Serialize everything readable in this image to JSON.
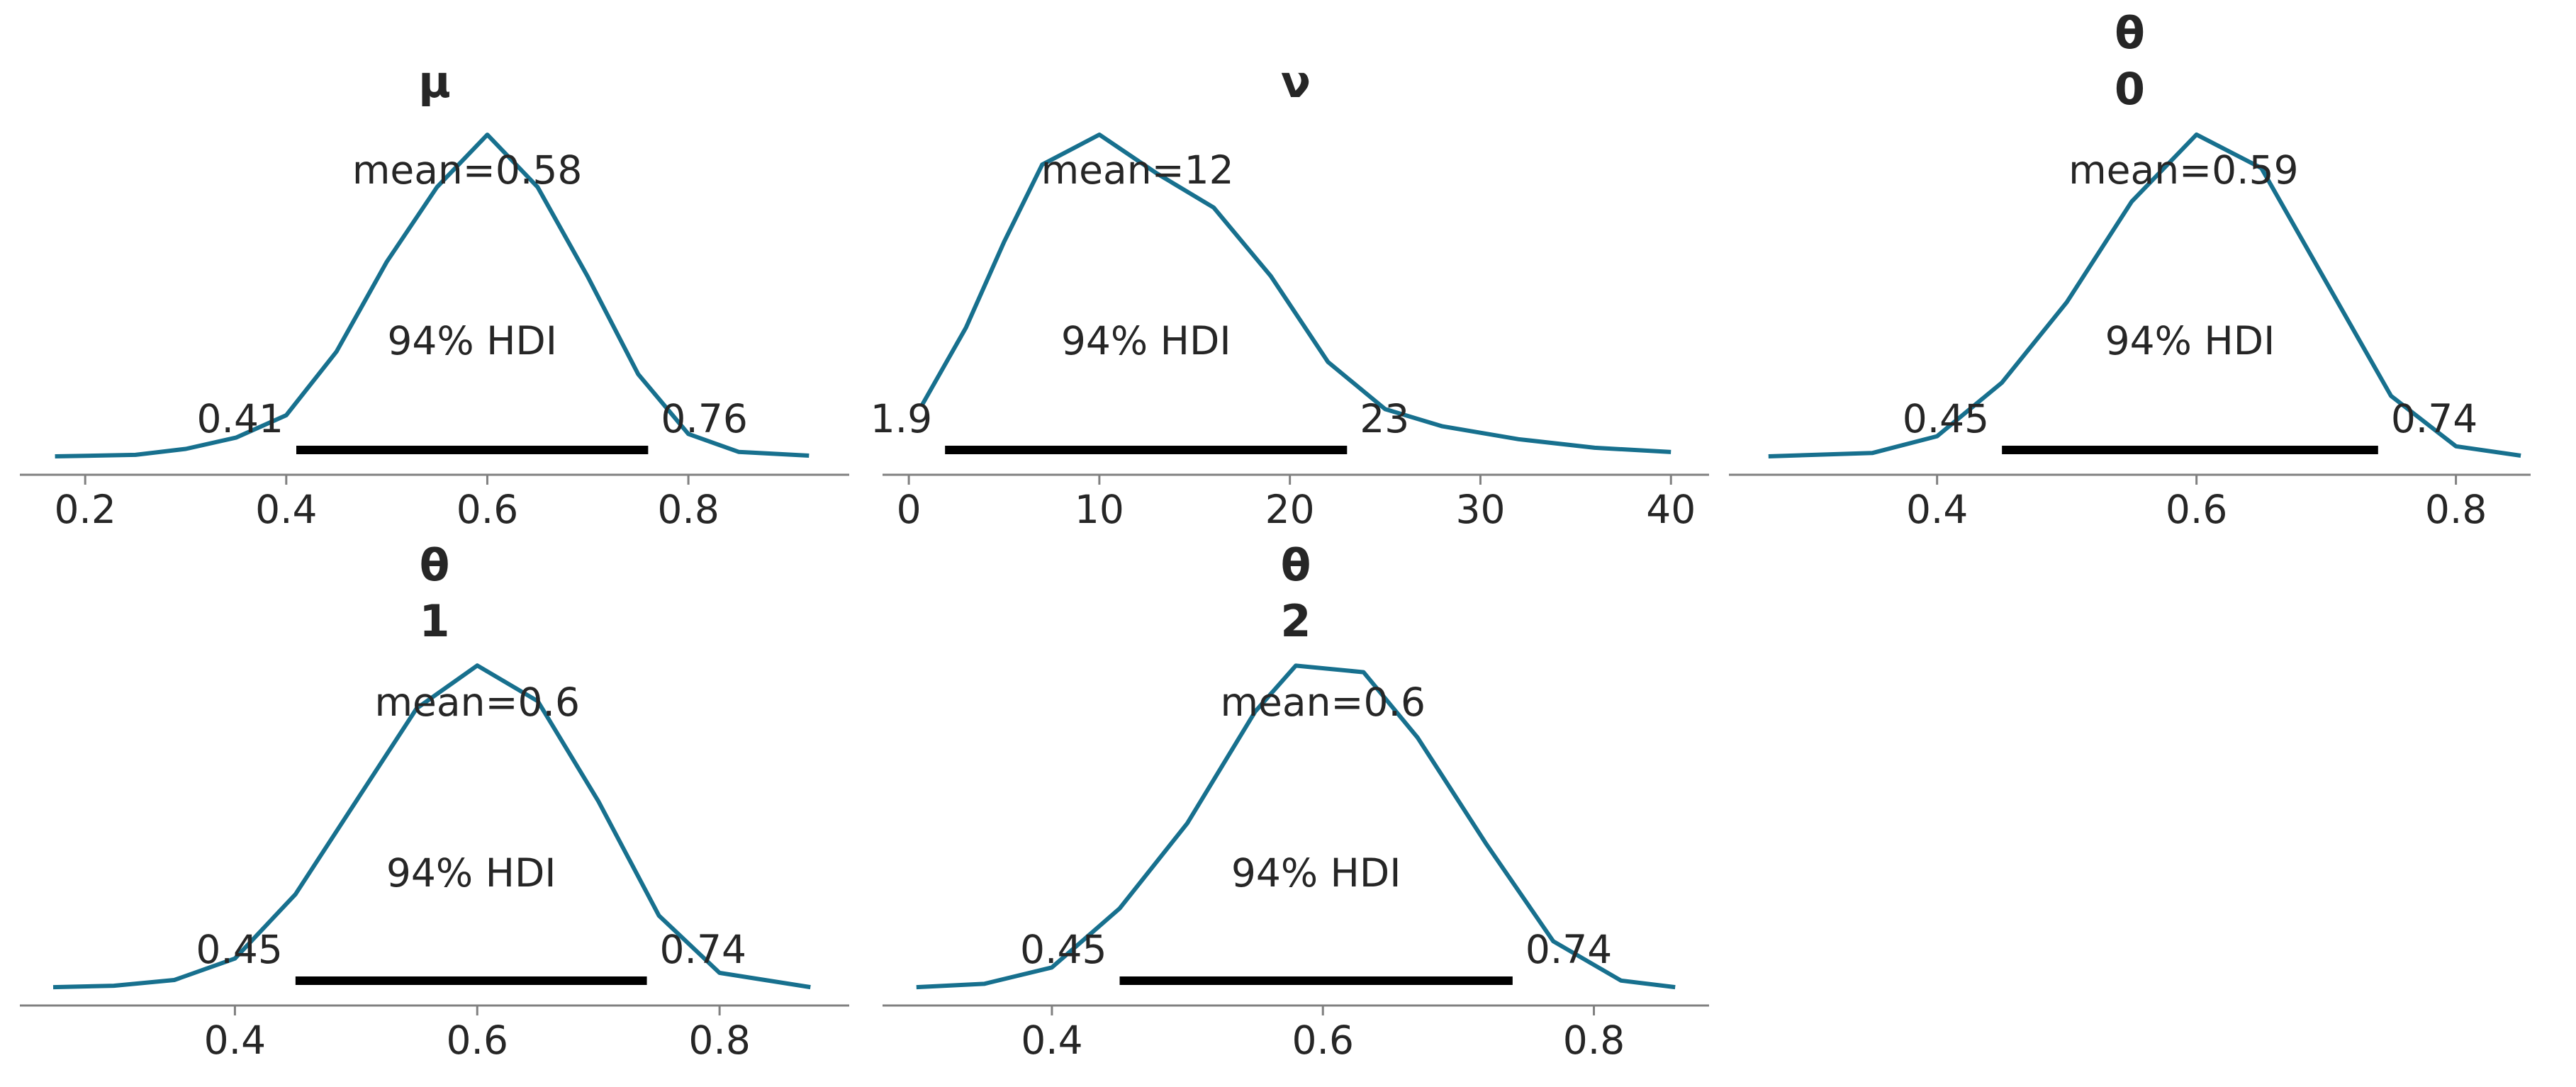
{
  "chart_data": [
    {
      "type": "line",
      "title": [
        "μ"
      ],
      "color": "#17708e",
      "x": [
        0.17,
        0.25,
        0.3,
        0.35,
        0.4,
        0.45,
        0.5,
        0.55,
        0.6,
        0.65,
        0.7,
        0.75,
        0.8,
        0.85,
        0.92
      ],
      "values": [
        0,
        0.02,
        0.1,
        0.25,
        0.55,
        1.4,
        2.6,
        3.6,
        4.3,
        3.6,
        2.4,
        1.1,
        0.3,
        0.06,
        0.01
      ],
      "xlim": [
        0.135,
        0.96
      ],
      "xticks": [
        0.2,
        0.4,
        0.6,
        0.8
      ],
      "ylim": [
        -0.246,
        4.49
      ],
      "mean": 0.58,
      "mean_label": "mean=0.58",
      "hdi": [
        0.41,
        0.76
      ],
      "hdi_label": "94% HDI"
    },
    {
      "type": "line",
      "title": [
        "ν"
      ],
      "color": "#17708e",
      "x": [
        0.7,
        3,
        5,
        7,
        10,
        13,
        16,
        19,
        22,
        25,
        28,
        32,
        36,
        40
      ],
      "values": [
        0.012,
        0.03,
        0.05,
        0.068,
        0.075,
        0.066,
        0.058,
        0.042,
        0.022,
        0.011,
        0.007,
        0.004,
        0.002,
        0.001
      ],
      "xlim": [
        -1.38,
        42
      ],
      "xticks": [
        0,
        10,
        20,
        30,
        40
      ],
      "ylim": [
        -0.0043,
        0.0783
      ],
      "mean": 12,
      "mean_label": "mean=12",
      "hdi": [
        1.9,
        23
      ],
      "hdi_label": "94% HDI"
    },
    {
      "type": "line",
      "title": [
        "θ",
        "0"
      ],
      "color": "#17708e",
      "x": [
        0.27,
        0.35,
        0.4,
        0.45,
        0.5,
        0.55,
        0.6,
        0.65,
        0.7,
        0.75,
        0.8,
        0.85
      ],
      "values": [
        0,
        0.05,
        0.3,
        1.1,
        2.3,
        3.8,
        4.8,
        4.3,
        2.6,
        0.9,
        0.15,
        0.01
      ],
      "xlim": [
        0.2395,
        0.8576
      ],
      "xticks": [
        0.4,
        0.6,
        0.8
      ],
      "ylim": [
        -0.275,
        5.01
      ],
      "mean": 0.59,
      "mean_label": "mean=0.59",
      "hdi": [
        0.45,
        0.74
      ],
      "hdi_label": "94% HDI"
    },
    {
      "type": "line",
      "title": [
        "θ",
        "1"
      ],
      "color": "#17708e",
      "x": [
        0.25,
        0.3,
        0.35,
        0.4,
        0.45,
        0.5,
        0.55,
        0.6,
        0.65,
        0.7,
        0.75,
        0.8,
        0.875
      ],
      "values": [
        0,
        0.02,
        0.1,
        0.4,
        1.3,
        2.6,
        3.9,
        4.5,
        4.0,
        2.6,
        1.0,
        0.2,
        0
      ],
      "xlim": [
        0.2225,
        0.907
      ],
      "xticks": [
        0.4,
        0.6,
        0.8
      ],
      "ylim": [
        -0.257,
        4.7
      ],
      "mean": 0.6,
      "mean_label": "mean=0.6",
      "hdi": [
        0.45,
        0.74
      ],
      "hdi_label": "94% HDI"
    },
    {
      "type": "line",
      "title": [
        "θ",
        "2"
      ],
      "color": "#17708e",
      "x": [
        0.3,
        0.35,
        0.4,
        0.45,
        0.5,
        0.55,
        0.58,
        0.63,
        0.67,
        0.72,
        0.77,
        0.82,
        0.86
      ],
      "values": [
        0,
        0.05,
        0.3,
        1.2,
        2.5,
        4.2,
        4.9,
        4.8,
        3.8,
        2.2,
        0.7,
        0.1,
        0
      ],
      "xlim": [
        0.275,
        0.885
      ],
      "xticks": [
        0.4,
        0.6,
        0.8
      ],
      "ylim": [
        -0.28,
        5.12
      ],
      "mean": 0.6,
      "mean_label": "mean=0.6",
      "hdi": [
        0.45,
        0.74
      ],
      "hdi_label": "94% HDI"
    }
  ]
}
